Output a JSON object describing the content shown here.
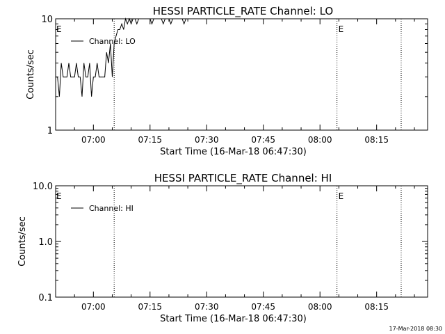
{
  "timestamp": "17-Mar-2018 08:30",
  "chart_data": [
    {
      "type": "line",
      "title": "HESSI PARTICLE_RATE Channel: LO",
      "xlabel": "Start Time (16-Mar-18 06:47:30)",
      "ylabel": "Counts/sec",
      "y_scale": "log",
      "ylim": [
        1,
        10
      ],
      "y_ticks": [
        1,
        10
      ],
      "y_tick_labels": [
        "1",
        "10"
      ],
      "xlim": [
        "06:50:00",
        "08:28:30"
      ],
      "x_ticks": [
        "07:00",
        "07:15",
        "07:30",
        "07:45",
        "08:00",
        "08:15"
      ],
      "legend": {
        "placement": "top-left",
        "entries": [
          "Channel: LO"
        ]
      },
      "event_markers": [
        {
          "time": "07:05:30",
          "label": ""
        },
        {
          "time": "08:04:30",
          "label": "E"
        },
        {
          "time": "08:21:30",
          "label": ""
        }
      ],
      "edge_label": "E",
      "series": [
        {
          "name": "Channel: LO",
          "x": [
            "06:50:00",
            "06:50:30",
            "06:51:00",
            "06:51:30",
            "06:52:00",
            "06:52:30",
            "06:53:00",
            "06:53:30",
            "06:54:00",
            "06:54:30",
            "06:55:00",
            "06:55:30",
            "06:56:00",
            "06:56:30",
            "06:57:00",
            "06:57:30",
            "06:58:00",
            "06:58:30",
            "06:59:00",
            "06:59:30",
            "07:00:00",
            "07:00:30",
            "07:01:00",
            "07:01:30",
            "07:02:00",
            "07:02:30",
            "07:03:00",
            "07:03:30",
            "07:04:00",
            "07:04:30",
            "07:05:00",
            "07:05:30",
            "07:06:00",
            "07:06:30",
            "07:07:00",
            "07:07:30",
            "07:08:00",
            "07:08:30",
            "07:09:00",
            "07:09:30",
            "07:10:00",
            "07:10:30",
            "07:11:00",
            "07:11:30",
            "07:12:00",
            "07:12:30",
            "07:13:00",
            "07:13:30",
            "07:14:00",
            "07:14:30",
            "07:15:00",
            "07:15:30",
            "07:16:00",
            "07:16:30",
            "07:17:00",
            "07:17:30",
            "07:18:00",
            "07:18:30",
            "07:19:00",
            "07:19:30",
            "07:20:00",
            "07:20:30",
            "07:21:00",
            "07:21:30",
            "07:22:00",
            "07:22:30",
            "07:23:00",
            "07:23:30",
            "07:24:00",
            "07:24:30",
            "07:25:00"
          ],
          "values": [
            3,
            3,
            2,
            4,
            3,
            3,
            3,
            4,
            3,
            3,
            3,
            4,
            3,
            3,
            2,
            4,
            3,
            3,
            4,
            2,
            3,
            3,
            4,
            3,
            3,
            3,
            3,
            5,
            4,
            6,
            3,
            6,
            7,
            8,
            8,
            9,
            8,
            10,
            9,
            10,
            9,
            10,
            10,
            9,
            10,
            10,
            10,
            10,
            10,
            10,
            10,
            9,
            10,
            10,
            10,
            10,
            10,
            9,
            10,
            10,
            10,
            9,
            10,
            10,
            10,
            10,
            10,
            10,
            9,
            10,
            10
          ]
        }
      ]
    },
    {
      "type": "line",
      "title": "HESSI PARTICLE_RATE Channel: HI",
      "xlabel": "Start Time (16-Mar-18 06:47:30)",
      "ylabel": "Counts/sec",
      "y_scale": "log",
      "ylim": [
        0.1,
        10
      ],
      "y_ticks": [
        0.1,
        1,
        10
      ],
      "y_tick_labels": [
        "0.1",
        "1.0",
        "10.0"
      ],
      "xlim": [
        "06:50:00",
        "08:28:30"
      ],
      "x_ticks": [
        "07:00",
        "07:15",
        "07:30",
        "07:45",
        "08:00",
        "08:15"
      ],
      "legend": {
        "placement": "top-left",
        "entries": [
          "Channel: HI"
        ]
      },
      "event_markers": [
        {
          "time": "07:05:30",
          "label": ""
        },
        {
          "time": "08:04:30",
          "label": "E"
        },
        {
          "time": "08:21:30",
          "label": ""
        }
      ],
      "edge_label": "E",
      "series": [
        {
          "name": "Channel: HI",
          "x": [],
          "values": []
        }
      ]
    }
  ]
}
